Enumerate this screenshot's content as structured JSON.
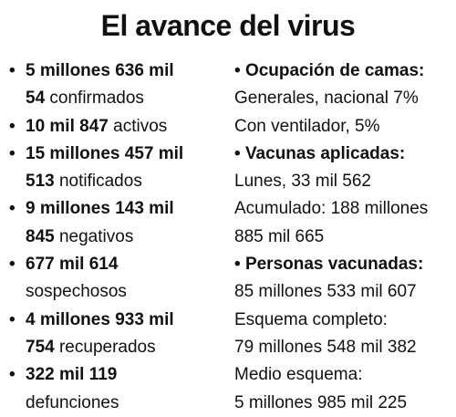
{
  "title": "El avance del virus",
  "left": [
    {
      "lines": [
        {
          "bold": "5 millones 636 mil"
        },
        {
          "bold": "54",
          "text": "confirmados"
        }
      ]
    },
    {
      "lines": [
        {
          "bold": "10 mil 847",
          "text": "activos"
        }
      ]
    },
    {
      "lines": [
        {
          "bold": "15 millones 457 mil"
        },
        {
          "bold": "513",
          "text": "notificados"
        }
      ]
    },
    {
      "lines": [
        {
          "bold": "9 millones 143 mil"
        },
        {
          "bold": "845",
          "text": "negativos"
        }
      ]
    },
    {
      "lines": [
        {
          "bold": "677 mil 614"
        },
        {
          "text": "sospechosos"
        }
      ]
    },
    {
      "lines": [
        {
          "bold": "4 millones 933 mil"
        },
        {
          "bold": "754",
          "text": "recuperados"
        }
      ]
    },
    {
      "lines": [
        {
          "bold": "322 mil 119"
        },
        {
          "text": "defunciones"
        }
      ]
    }
  ],
  "right": [
    {
      "heading": "Ocupación de camas:",
      "lines": [
        "Generales, nacional 7%",
        "Con ventilador, 5%"
      ]
    },
    {
      "heading": "Vacunas aplicadas:",
      "lines": [
        "Lunes, 33 mil 562",
        "Acumulado: 188 millones",
        "885 mil 665"
      ]
    },
    {
      "heading": "Personas vacunadas:",
      "lines": [
        "85 millones 533 mil 607",
        "Esquema completo:",
        "79 millones 548 mil 382",
        "Medio esquema:",
        "5 millones 985 mil 225"
      ]
    }
  ]
}
